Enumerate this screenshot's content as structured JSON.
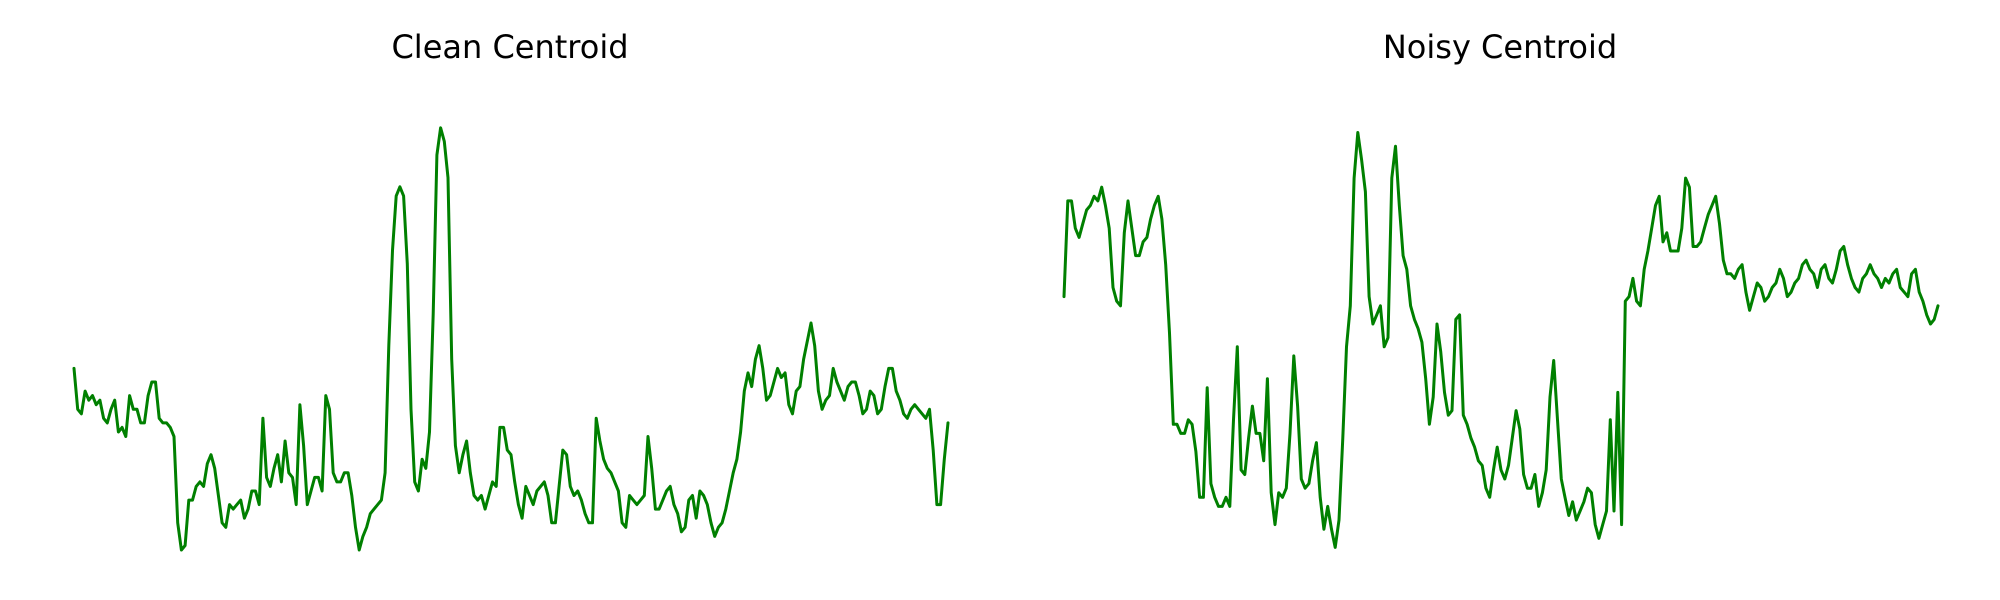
{
  "colors": {
    "line": "#008000",
    "background": "#ffffff"
  },
  "chart_data": [
    {
      "type": "line",
      "title": "Clean Centroid",
      "xlabel": "",
      "ylabel": "",
      "axes_visible": false,
      "grid": false,
      "series": [
        {
          "values": [
            0.4,
            0.31,
            0.3,
            0.35,
            0.33,
            0.34,
            0.32,
            0.33,
            0.29,
            0.28,
            0.31,
            0.33,
            0.26,
            0.27,
            0.25,
            0.34,
            0.31,
            0.31,
            0.28,
            0.28,
            0.34,
            0.37,
            0.37,
            0.29,
            0.28,
            0.28,
            0.27,
            0.25,
            0.06,
            0.0,
            0.01,
            0.11,
            0.11,
            0.14,
            0.15,
            0.14,
            0.19,
            0.21,
            0.18,
            0.12,
            0.06,
            0.05,
            0.1,
            0.09,
            0.1,
            0.11,
            0.07,
            0.09,
            0.13,
            0.13,
            0.1,
            0.29,
            0.16,
            0.14,
            0.18,
            0.21,
            0.15,
            0.24,
            0.17,
            0.16,
            0.1,
            0.32,
            0.23,
            0.1,
            0.13,
            0.16,
            0.16,
            0.13,
            0.34,
            0.31,
            0.17,
            0.15,
            0.15,
            0.17,
            0.17,
            0.12,
            0.05,
            0.0,
            0.03,
            0.05,
            0.08,
            0.09,
            0.1,
            0.11,
            0.17,
            0.45,
            0.66,
            0.78,
            0.8,
            0.78,
            0.63,
            0.31,
            0.15,
            0.13,
            0.2,
            0.18,
            0.26,
            0.52,
            0.87,
            0.93,
            0.9,
            0.82,
            0.42,
            0.23,
            0.17,
            0.21,
            0.24,
            0.17,
            0.12,
            0.11,
            0.12,
            0.09,
            0.12,
            0.15,
            0.14,
            0.27,
            0.27,
            0.22,
            0.21,
            0.15,
            0.1,
            0.07,
            0.14,
            0.12,
            0.1,
            0.13,
            0.14,
            0.15,
            0.12,
            0.06,
            0.06,
            0.14,
            0.22,
            0.21,
            0.14,
            0.12,
            0.13,
            0.11,
            0.08,
            0.06,
            0.06,
            0.29,
            0.24,
            0.2,
            0.18,
            0.17,
            0.15,
            0.13,
            0.06,
            0.05,
            0.12,
            0.11,
            0.1,
            0.11,
            0.12,
            0.25,
            0.18,
            0.09,
            0.09,
            0.11,
            0.13,
            0.14,
            0.1,
            0.08,
            0.04,
            0.05,
            0.11,
            0.12,
            0.07,
            0.13,
            0.12,
            0.1,
            0.06,
            0.03,
            0.05,
            0.06,
            0.09,
            0.13,
            0.17,
            0.2,
            0.26,
            0.35,
            0.39,
            0.36,
            0.42,
            0.45,
            0.4,
            0.33,
            0.34,
            0.37,
            0.4,
            0.38,
            0.39,
            0.32,
            0.3,
            0.35,
            0.36,
            0.42,
            0.46,
            0.5,
            0.45,
            0.35,
            0.31,
            0.33,
            0.34,
            0.4,
            0.37,
            0.35,
            0.33,
            0.36,
            0.37,
            0.37,
            0.34,
            0.3,
            0.31,
            0.35,
            0.34,
            0.3,
            0.31,
            0.36,
            0.4,
            0.4,
            0.35,
            0.33,
            0.3,
            0.29,
            0.31,
            0.32,
            0.31,
            0.3,
            0.29,
            0.31,
            0.22,
            0.1,
            0.1,
            0.2,
            0.28
          ]
        }
      ]
    },
    {
      "type": "line",
      "title": "Noisy Centroid",
      "xlabel": "",
      "ylabel": "",
      "axes_visible": false,
      "grid": false,
      "series": [
        {
          "values": [
            0.56,
            0.77,
            0.77,
            0.71,
            0.69,
            0.72,
            0.75,
            0.76,
            0.78,
            0.77,
            0.8,
            0.76,
            0.71,
            0.58,
            0.55,
            0.54,
            0.7,
            0.77,
            0.71,
            0.65,
            0.65,
            0.68,
            0.69,
            0.73,
            0.76,
            0.78,
            0.73,
            0.63,
            0.48,
            0.28,
            0.28,
            0.26,
            0.26,
            0.29,
            0.28,
            0.22,
            0.12,
            0.12,
            0.36,
            0.15,
            0.12,
            0.1,
            0.1,
            0.12,
            0.1,
            0.29,
            0.45,
            0.18,
            0.17,
            0.25,
            0.32,
            0.26,
            0.26,
            0.2,
            0.38,
            0.13,
            0.06,
            0.13,
            0.12,
            0.14,
            0.26,
            0.43,
            0.32,
            0.16,
            0.14,
            0.15,
            0.2,
            0.24,
            0.12,
            0.05,
            0.1,
            0.05,
            0.01,
            0.07,
            0.25,
            0.45,
            0.54,
            0.82,
            0.92,
            0.86,
            0.79,
            0.56,
            0.5,
            0.52,
            0.54,
            0.45,
            0.47,
            0.82,
            0.89,
            0.76,
            0.65,
            0.62,
            0.54,
            0.51,
            0.49,
            0.46,
            0.38,
            0.28,
            0.34,
            0.5,
            0.44,
            0.35,
            0.3,
            0.31,
            0.51,
            0.52,
            0.3,
            0.28,
            0.25,
            0.23,
            0.2,
            0.19,
            0.14,
            0.12,
            0.18,
            0.23,
            0.18,
            0.16,
            0.19,
            0.25,
            0.31,
            0.27,
            0.17,
            0.14,
            0.14,
            0.17,
            0.1,
            0.13,
            0.18,
            0.34,
            0.42,
            0.29,
            0.16,
            0.12,
            0.08,
            0.11,
            0.07,
            0.09,
            0.11,
            0.14,
            0.13,
            0.06,
            0.03,
            0.06,
            0.09,
            0.29,
            0.09,
            0.35,
            0.06,
            0.55,
            0.56,
            0.6,
            0.55,
            0.54,
            0.62,
            0.66,
            0.71,
            0.76,
            0.78,
            0.68,
            0.7,
            0.66,
            0.66,
            0.66,
            0.71,
            0.82,
            0.8,
            0.67,
            0.67,
            0.68,
            0.71,
            0.74,
            0.76,
            0.78,
            0.72,
            0.64,
            0.61,
            0.61,
            0.6,
            0.62,
            0.63,
            0.57,
            0.53,
            0.56,
            0.59,
            0.58,
            0.55,
            0.56,
            0.58,
            0.59,
            0.62,
            0.6,
            0.56,
            0.57,
            0.59,
            0.6,
            0.63,
            0.64,
            0.62,
            0.61,
            0.58,
            0.62,
            0.63,
            0.6,
            0.59,
            0.62,
            0.66,
            0.67,
            0.63,
            0.6,
            0.58,
            0.57,
            0.6,
            0.61,
            0.63,
            0.61,
            0.6,
            0.58,
            0.6,
            0.59,
            0.61,
            0.62,
            0.58,
            0.57,
            0.56,
            0.61,
            0.62,
            0.57,
            0.55,
            0.52,
            0.5,
            0.51,
            0.54
          ]
        }
      ]
    }
  ]
}
